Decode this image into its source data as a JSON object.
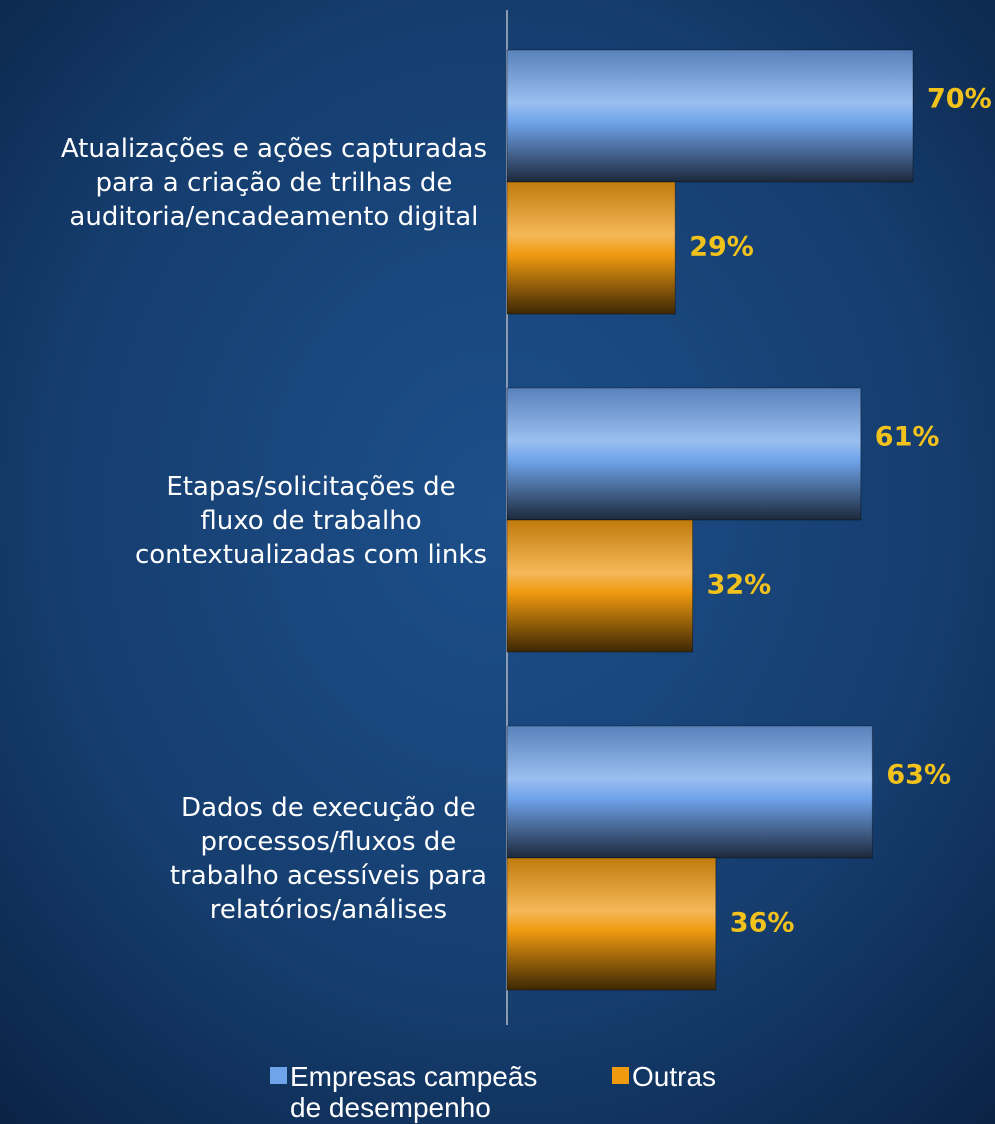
{
  "chart_data": {
    "type": "hbar",
    "categories": [
      "Atualizações e ações capturadas\npara a criação de trilhas de\nauditoria/encadeamento digital",
      "Etapas/solicitações de\nfluxo de trabalho\ncontextualizadas com links",
      "Dados de execução de\nprocessos/fluxos de\ntrabalho acessíveis para\nrelatórios/análises"
    ],
    "series": [
      {
        "name": "Empresas campeãs\nde desempenho",
        "color": "#6fa3ea",
        "values": [
          70,
          61,
          63
        ],
        "value_labels": [
          "70%",
          "61%",
          "63%"
        ]
      },
      {
        "name": "Outras",
        "color": "#f09a10",
        "values": [
          29,
          32,
          36
        ],
        "value_labels": [
          "29%",
          "32%",
          "36%"
        ]
      }
    ],
    "xlim": [
      0,
      100
    ],
    "legend": "bottom"
  }
}
